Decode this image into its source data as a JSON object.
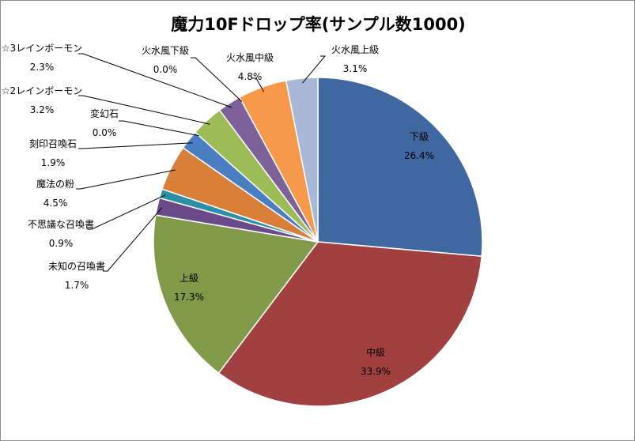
{
  "chart_data": {
    "type": "pie",
    "title": "魔力10Fドロップ率(サンプル数1000)",
    "slices": [
      {
        "name": "下級",
        "value": 26.4,
        "label": "26.4%",
        "color": "#4068a0"
      },
      {
        "name": "中級",
        "value": 33.9,
        "label": "33.9%",
        "color": "#a04040"
      },
      {
        "name": "上級",
        "value": 17.3,
        "label": "17.3%",
        "color": "#809a4a"
      },
      {
        "name": "未知の召喚書",
        "value": 1.7,
        "label": "1.7%",
        "color": "#6a4a88"
      },
      {
        "name": "不思議な召喚書",
        "value": 0.9,
        "label": "0.9%",
        "color": "#2c8fa6"
      },
      {
        "name": "魔法の粉",
        "value": 4.5,
        "label": "4.5%",
        "color": "#d8803a"
      },
      {
        "name": "刻印召喚石",
        "value": 1.9,
        "label": "1.9%",
        "color": "#4a7ec0"
      },
      {
        "name": "変幻石",
        "value": 0.0,
        "label": "0.0%",
        "color": "#c04848"
      },
      {
        "name": "☆2レインボーモン",
        "value": 3.2,
        "label": "3.2%",
        "color": "#9cbc58"
      },
      {
        "name": "☆3レインボーモン",
        "value": 2.3,
        "label": "2.3%",
        "color": "#7d629a"
      },
      {
        "name": "火水風下級",
        "value": 0.0,
        "label": "0.0%",
        "color": "#3aa8c4"
      },
      {
        "name": "火水風中級",
        "value": 4.8,
        "label": "4.8%",
        "color": "#f7994a"
      },
      {
        "name": "火水風上級",
        "value": 3.1,
        "label": "3.1%",
        "color": "#a9b8d8"
      }
    ],
    "legend": "none",
    "data_labels": "category name and percentage"
  }
}
